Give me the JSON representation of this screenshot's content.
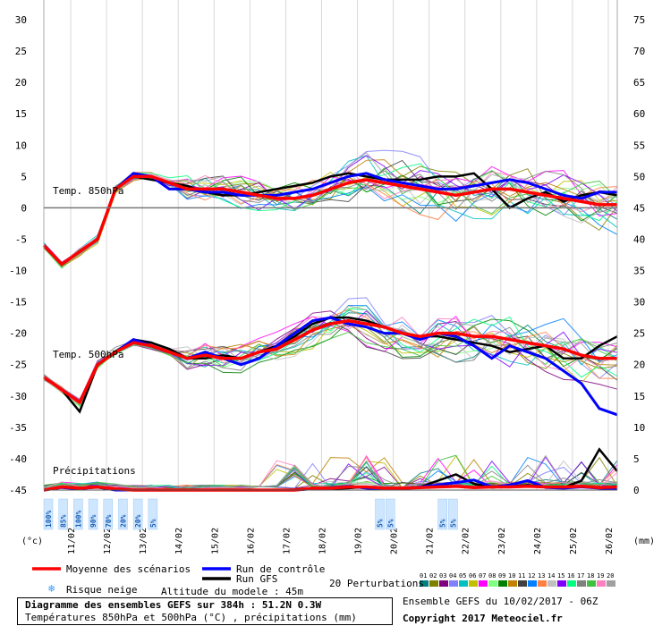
{
  "chart_data": {
    "type": "line",
    "title": "Diagramme des ensembles GEFS sur 384h : 51.2N 0.3W",
    "subtitle": "Températures 850hPa et 500hPa (°C) , précipitations (mm)",
    "ylabel_left": "(°c)",
    "ylabel_right": "(mm)",
    "left_ticks": [
      30,
      25,
      20,
      15,
      10,
      5,
      0,
      -5,
      -10,
      -15,
      -20,
      -25,
      -30,
      -35,
      -40,
      -45
    ],
    "right_ticks": [
      75,
      70,
      65,
      60,
      55,
      50,
      45,
      40,
      35,
      30,
      25,
      20,
      15,
      10,
      5,
      0
    ],
    "xlim_hours": [
      0,
      384
    ],
    "ylim": [
      -45,
      30
    ],
    "dates": [
      "11/02",
      "12/02",
      "13/02",
      "14/02",
      "15/02",
      "16/02",
      "17/02",
      "18/02",
      "19/02",
      "20/02",
      "21/02",
      "22/02",
      "23/02",
      "24/02",
      "25/02",
      "26/02"
    ],
    "panel_labels": {
      "t850": "Temp. 850hPa",
      "t500": "Temp. 500hPa",
      "precip": "Précipitations"
    },
    "x": [
      0,
      12,
      24,
      36,
      48,
      60,
      72,
      84,
      96,
      108,
      120,
      132,
      144,
      156,
      168,
      180,
      192,
      204,
      216,
      228,
      240,
      252,
      264,
      276,
      288,
      300,
      312,
      324,
      336,
      348,
      360,
      372,
      384
    ],
    "series": [
      {
        "name": "Moyenne des scénarios",
        "color": "#ff0000",
        "t850": [
          -6,
          -9,
          -7,
          -5,
          3,
          5,
          5,
          4,
          3,
          3,
          3,
          2.5,
          2,
          1.5,
          1.5,
          2,
          3,
          4,
          4.5,
          4,
          3.5,
          3,
          2.5,
          2,
          2.5,
          3,
          3,
          2.5,
          2,
          1.5,
          1,
          0.5,
          0.5
        ],
        "t500": [
          -27,
          -29,
          -31,
          -25,
          -23,
          -21.5,
          -22,
          -23,
          -24,
          -23.5,
          -24,
          -24,
          -23,
          -22.5,
          -21,
          -19.5,
          -18.5,
          -18,
          -18.5,
          -19,
          -20,
          -20.5,
          -20,
          -20,
          -20.5,
          -20.5,
          -21,
          -21.5,
          -22,
          -22.5,
          -23.5,
          -24,
          -24
        ],
        "precip": [
          0,
          0.5,
          0.3,
          0.5,
          0.2,
          0,
          0,
          0,
          0,
          0,
          0,
          0,
          0,
          0,
          0,
          0.3,
          0.3,
          0.5,
          0.5,
          0.3,
          0.3,
          0.4,
          0.5,
          0.6,
          0.4,
          0.5,
          0.5,
          0.6,
          0.5,
          0.5,
          0.6,
          0.4,
          0.5
        ]
      },
      {
        "name": "Run de contrôle",
        "color": "#0000ff",
        "t850": [
          -6,
          -9,
          -7,
          -5,
          3,
          5.5,
          5,
          3,
          3,
          2.5,
          2.5,
          2,
          2,
          2,
          2.5,
          3,
          4,
          5,
          5.5,
          4.5,
          4,
          3.5,
          3,
          3,
          3.5,
          4,
          4.5,
          4,
          3,
          2,
          1.5,
          2.5,
          2.5
        ],
        "t500": [
          -27,
          -29,
          -31,
          -25,
          -23,
          -21,
          -22,
          -23,
          -24,
          -23,
          -24,
          -25,
          -24,
          -22,
          -20,
          -18,
          -17.5,
          -18.5,
          -19,
          -20,
          -20,
          -21,
          -20,
          -20.5,
          -22,
          -24,
          -22,
          -23,
          -24,
          -26,
          -28,
          -32,
          -33
        ],
        "precip": [
          0,
          0.4,
          0.2,
          0.5,
          0,
          0,
          0,
          0,
          0,
          0,
          0,
          0,
          0,
          0,
          0,
          0.2,
          0.4,
          0.6,
          0.3,
          0.2,
          0.2,
          0.5,
          0.8,
          1.2,
          1.6,
          0.5,
          0.8,
          1.5,
          0.4,
          0.3,
          0.5,
          0.3,
          0.2
        ]
      },
      {
        "name": "Run GFS",
        "color": "#000000",
        "t850": [
          -6,
          -9,
          -7,
          -5,
          3,
          5,
          4.5,
          4,
          3.5,
          2.5,
          2,
          2,
          2.5,
          3,
          3.5,
          4,
          5,
          5.5,
          5,
          4.5,
          4.5,
          4.5,
          5,
          5,
          5.5,
          3,
          0,
          1.5,
          2.5,
          1,
          2,
          2.5,
          2
        ],
        "t500": [
          -27,
          -29,
          -32.5,
          -25,
          -23,
          -21,
          -21.5,
          -22.5,
          -24,
          -24,
          -23.5,
          -24,
          -23,
          -22,
          -20.5,
          -18.5,
          -17.5,
          -17.5,
          -18,
          -19,
          -20,
          -20.5,
          -20.5,
          -21,
          -21.5,
          -22,
          -23,
          -22.5,
          -22,
          -24,
          -24,
          -22,
          -20.5
        ],
        "precip": [
          0,
          0.5,
          0.3,
          0.4,
          0,
          0,
          0,
          0,
          0,
          0,
          0,
          0,
          0,
          0,
          0,
          0.2,
          0.2,
          0.3,
          0.5,
          0.2,
          0.3,
          0.5,
          1.5,
          2.5,
          1,
          0.4,
          0.6,
          0.8,
          0.5,
          0.4,
          1.5,
          6.5,
          3
        ]
      }
    ],
    "perturbation_colors": [
      "#008080",
      "#808000",
      "#800080",
      "#8080ff",
      "#00c0c0",
      "#c0c000",
      "#ff00ff",
      "#80ff80",
      "#008000",
      "#c08000",
      "#404040",
      "#0080ff",
      "#ff8040",
      "#c0c0c0",
      "#8000ff",
      "#00ff80",
      "#808080",
      "#40c040",
      "#ff80c0",
      "#a0a0a0"
    ],
    "snow_labels": [
      {
        "hour": 3,
        "text": "100%"
      },
      {
        "hour": 13,
        "text": "85%"
      },
      {
        "hour": 23,
        "text": "100%"
      },
      {
        "hour": 33,
        "text": "90%"
      },
      {
        "hour": 43,
        "text": "70%"
      },
      {
        "hour": 53,
        "text": "20%"
      },
      {
        "hour": 63,
        "text": "20%"
      },
      {
        "hour": 73,
        "text": "5%"
      },
      {
        "hour": 225,
        "text": "5%"
      },
      {
        "hour": 232,
        "text": "5%"
      },
      {
        "hour": 267,
        "text": "5%"
      },
      {
        "hour": 274,
        "text": "5%"
      }
    ]
  },
  "legend": {
    "mean_label": "Moyenne des scénarios",
    "control_label": "Run de contrôle",
    "gfs_label": "Run GFS",
    "perturbations_label": "20 Perturbations",
    "perturbation_ids": [
      "01",
      "02",
      "03",
      "04",
      "05",
      "06",
      "07",
      "08",
      "09",
      "10",
      "11",
      "12",
      "13",
      "14",
      "15",
      "16",
      "17",
      "18",
      "19",
      "20"
    ],
    "snow_label": "Risque neige",
    "altitude_label": "Altitude du modele : 45m"
  },
  "footer": {
    "title": "Diagramme des ensembles GEFS sur 384h : 51.2N 0.3W",
    "subtitle": "Températures 850hPa et 500hPa (°C) , précipitations (mm)",
    "run_info": "Ensemble GEFS du 10/02/2017 - 06Z",
    "copyright": "Copyright 2017 Meteociel.fr"
  }
}
